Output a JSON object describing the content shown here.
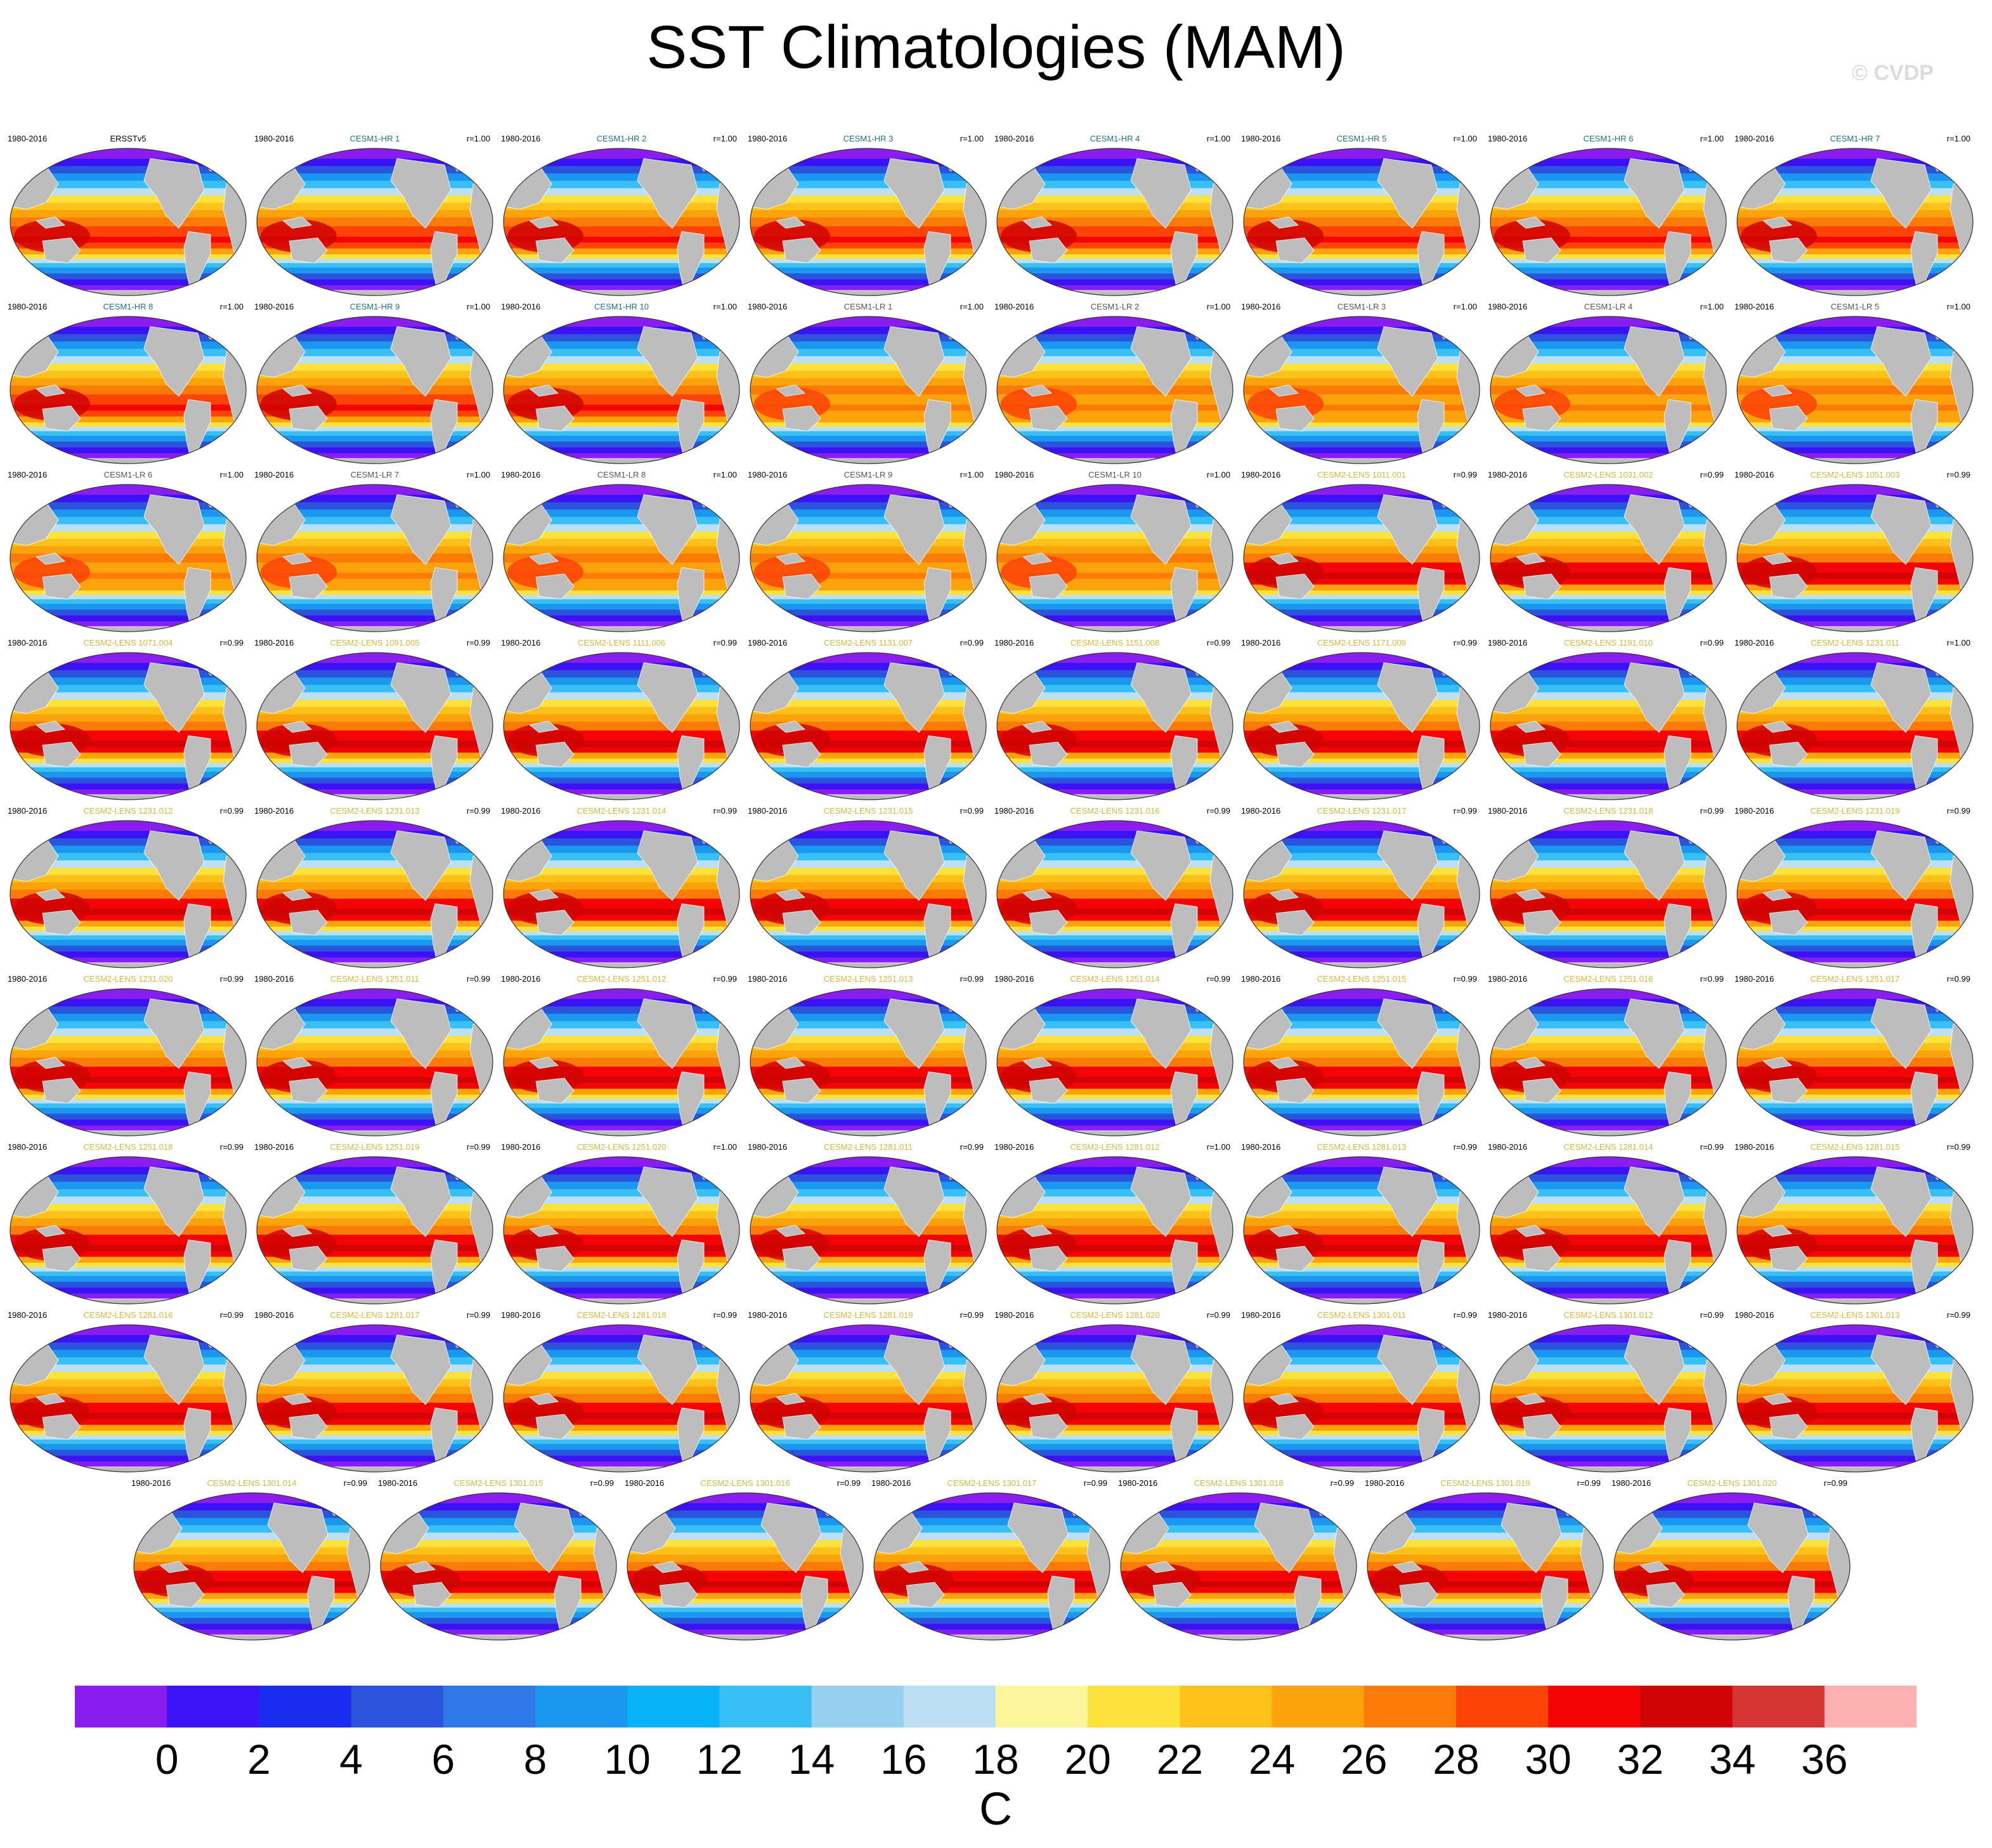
{
  "title": "SST Climatologies (MAM)",
  "watermark": "© CVDP",
  "colors": {
    "obs_label": "#000000",
    "hr_label": "#1f6f8b",
    "lr_label": "#555555",
    "lens_label": "#d4b840",
    "land": "#bdbdbd",
    "coast": "#ffffff"
  },
  "chart_data": {
    "type": "map_panels",
    "period": "1980-2016",
    "panels": [
      {
        "name": "ERSSTv5",
        "years": "1980-2016",
        "r": "",
        "group": "obs"
      },
      {
        "name": "CESM1-HR 1",
        "years": "1980-2016",
        "r": "r=1.00",
        "group": "hr"
      },
      {
        "name": "CESM1-HR 2",
        "years": "1980-2016",
        "r": "r=1.00",
        "group": "hr"
      },
      {
        "name": "CESM1-HR 3",
        "years": "1980-2016",
        "r": "r=1.00",
        "group": "hr"
      },
      {
        "name": "CESM1-HR 4",
        "years": "1980-2016",
        "r": "r=1.00",
        "group": "hr"
      },
      {
        "name": "CESM1-HR 5",
        "years": "1980-2016",
        "r": "r=1.00",
        "group": "hr"
      },
      {
        "name": "CESM1-HR 6",
        "years": "1980-2016",
        "r": "r=1.00",
        "group": "hr"
      },
      {
        "name": "CESM1-HR 7",
        "years": "1980-2016",
        "r": "r=1.00",
        "group": "hr"
      },
      {
        "name": "CESM1-HR 8",
        "years": "1980-2016",
        "r": "r=1.00",
        "group": "hr"
      },
      {
        "name": "CESM1-HR 9",
        "years": "1980-2016",
        "r": "r=1.00",
        "group": "hr"
      },
      {
        "name": "CESM1-HR 10",
        "years": "1980-2016",
        "r": "r=1.00",
        "group": "hr"
      },
      {
        "name": "CESM1-LR 1",
        "years": "1980-2016",
        "r": "r=1.00",
        "group": "lr"
      },
      {
        "name": "CESM1-LR 2",
        "years": "1980-2016",
        "r": "r=1.00",
        "group": "lr"
      },
      {
        "name": "CESM1-LR 3",
        "years": "1980-2016",
        "r": "r=1.00",
        "group": "lr"
      },
      {
        "name": "CESM1-LR 4",
        "years": "1980-2016",
        "r": "r=1.00",
        "group": "lr"
      },
      {
        "name": "CESM1-LR 5",
        "years": "1980-2016",
        "r": "r=1.00",
        "group": "lr"
      },
      {
        "name": "CESM1-LR 6",
        "years": "1980-2016",
        "r": "r=1.00",
        "group": "lr"
      },
      {
        "name": "CESM1-LR 7",
        "years": "1980-2016",
        "r": "r=1.00",
        "group": "lr"
      },
      {
        "name": "CESM1-LR 8",
        "years": "1980-2016",
        "r": "r=1.00",
        "group": "lr"
      },
      {
        "name": "CESM1-LR 9",
        "years": "1980-2016",
        "r": "r=1.00",
        "group": "lr"
      },
      {
        "name": "CESM1-LR 10",
        "years": "1980-2016",
        "r": "r=1.00",
        "group": "lr"
      },
      {
        "name": "CESM2-LENS 1011.001",
        "years": "1980-2016",
        "r": "r=0.99",
        "group": "lens"
      },
      {
        "name": "CESM2-LENS 1031.002",
        "years": "1980-2016",
        "r": "r=0.99",
        "group": "lens"
      },
      {
        "name": "CESM2-LENS 1051.003",
        "years": "1980-2016",
        "r": "r=0.99",
        "group": "lens"
      },
      {
        "name": "CESM2-LENS 1071.004",
        "years": "1980-2016",
        "r": "r=0.99",
        "group": "lens"
      },
      {
        "name": "CESM2-LENS 1091.005",
        "years": "1980-2016",
        "r": "r=0.99",
        "group": "lens"
      },
      {
        "name": "CESM2-LENS 1111.006",
        "years": "1980-2016",
        "r": "r=0.99",
        "group": "lens"
      },
      {
        "name": "CESM2-LENS 1131.007",
        "years": "1980-2016",
        "r": "r=0.99",
        "group": "lens"
      },
      {
        "name": "CESM2-LENS 1151.008",
        "years": "1980-2016",
        "r": "r=0.99",
        "group": "lens"
      },
      {
        "name": "CESM2-LENS 1171.009",
        "years": "1980-2016",
        "r": "r=0.99",
        "group": "lens"
      },
      {
        "name": "CESM2-LENS 1191.010",
        "years": "1980-2016",
        "r": "r=0.99",
        "group": "lens"
      },
      {
        "name": "CESM2-LENS 1231.011",
        "years": "1980-2016",
        "r": "r=1.00",
        "group": "lens"
      },
      {
        "name": "CESM2-LENS 1231.012",
        "years": "1980-2016",
        "r": "r=0.99",
        "group": "lens"
      },
      {
        "name": "CESM2-LENS 1231.013",
        "years": "1980-2016",
        "r": "r=0.99",
        "group": "lens"
      },
      {
        "name": "CESM2-LENS 1231.014",
        "years": "1980-2016",
        "r": "r=0.99",
        "group": "lens"
      },
      {
        "name": "CESM2-LENS 1231.015",
        "years": "1980-2016",
        "r": "r=0.99",
        "group": "lens"
      },
      {
        "name": "CESM2-LENS 1231.016",
        "years": "1980-2016",
        "r": "r=0.99",
        "group": "lens"
      },
      {
        "name": "CESM2-LENS 1231.017",
        "years": "1980-2016",
        "r": "r=0.99",
        "group": "lens"
      },
      {
        "name": "CESM2-LENS 1231.018",
        "years": "1980-2016",
        "r": "r=0.99",
        "group": "lens"
      },
      {
        "name": "CESM2-LENS 1231.019",
        "years": "1980-2016",
        "r": "r=0.99",
        "group": "lens"
      },
      {
        "name": "CESM2-LENS 1231.020",
        "years": "1980-2016",
        "r": "r=0.99",
        "group": "lens"
      },
      {
        "name": "CESM2-LENS 1251.011",
        "years": "1980-2016",
        "r": "r=0.99",
        "group": "lens"
      },
      {
        "name": "CESM2-LENS 1251.012",
        "years": "1980-2016",
        "r": "r=0.99",
        "group": "lens"
      },
      {
        "name": "CESM2-LENS 1251.013",
        "years": "1980-2016",
        "r": "r=0.99",
        "group": "lens"
      },
      {
        "name": "CESM2-LENS 1251.014",
        "years": "1980-2016",
        "r": "r=0.99",
        "group": "lens"
      },
      {
        "name": "CESM2-LENS 1251.015",
        "years": "1980-2016",
        "r": "r=0.99",
        "group": "lens"
      },
      {
        "name": "CESM2-LENS 1251.016",
        "years": "1980-2016",
        "r": "r=0.99",
        "group": "lens"
      },
      {
        "name": "CESM2-LENS 1251.017",
        "years": "1980-2016",
        "r": "r=0.99",
        "group": "lens"
      },
      {
        "name": "CESM2-LENS 1251.018",
        "years": "1980-2016",
        "r": "r=0.99",
        "group": "lens"
      },
      {
        "name": "CESM2-LENS 1251.019",
        "years": "1980-2016",
        "r": "r=0.99",
        "group": "lens"
      },
      {
        "name": "CESM2-LENS 1251.020",
        "years": "1980-2016",
        "r": "r=1.00",
        "group": "lens"
      },
      {
        "name": "CESM2-LENS 1281.011",
        "years": "1980-2016",
        "r": "r=0.99",
        "group": "lens"
      },
      {
        "name": "CESM2-LENS 1281.012",
        "years": "1980-2016",
        "r": "r=1.00",
        "group": "lens"
      },
      {
        "name": "CESM2-LENS 1281.013",
        "years": "1980-2016",
        "r": "r=0.99",
        "group": "lens"
      },
      {
        "name": "CESM2-LENS 1281.014",
        "years": "1980-2016",
        "r": "r=0.99",
        "group": "lens"
      },
      {
        "name": "CESM2-LENS 1281.015",
        "years": "1980-2016",
        "r": "r=0.99",
        "group": "lens"
      },
      {
        "name": "CESM2-LENS 1281.016",
        "years": "1980-2016",
        "r": "r=0.99",
        "group": "lens"
      },
      {
        "name": "CESM2-LENS 1281.017",
        "years": "1980-2016",
        "r": "r=0.99",
        "group": "lens"
      },
      {
        "name": "CESM2-LENS 1281.018",
        "years": "1980-2016",
        "r": "r=0.99",
        "group": "lens"
      },
      {
        "name": "CESM2-LENS 1281.019",
        "years": "1980-2016",
        "r": "r=0.99",
        "group": "lens"
      },
      {
        "name": "CESM2-LENS 1281.020",
        "years": "1980-2016",
        "r": "r=0.99",
        "group": "lens"
      },
      {
        "name": "CESM2-LENS 1301.011",
        "years": "1980-2016",
        "r": "r=0.99",
        "group": "lens"
      },
      {
        "name": "CESM2-LENS 1301.012",
        "years": "1980-2016",
        "r": "r=0.99",
        "group": "lens"
      },
      {
        "name": "CESM2-LENS 1301.013",
        "years": "1980-2016",
        "r": "r=0.99",
        "group": "lens"
      },
      {
        "name": "CESM2-LENS 1301.014",
        "years": "1980-2016",
        "r": "r=0.99",
        "group": "lens"
      },
      {
        "name": "CESM2-LENS 1301.015",
        "years": "1980-2016",
        "r": "r=0.99",
        "group": "lens"
      },
      {
        "name": "CESM2-LENS 1301.016",
        "years": "1980-2016",
        "r": "r=0.99",
        "group": "lens"
      },
      {
        "name": "CESM2-LENS 1301.017",
        "years": "1980-2016",
        "r": "r=0.99",
        "group": "lens"
      },
      {
        "name": "CESM2-LENS 1301.018",
        "years": "1980-2016",
        "r": "r=0.99",
        "group": "lens"
      },
      {
        "name": "CESM2-LENS 1301.019",
        "years": "1980-2016",
        "r": "r=0.99",
        "group": "lens"
      },
      {
        "name": "CESM2-LENS 1301.020",
        "years": "1980-2016",
        "r": "r=0.99",
        "group": "lens"
      }
    ],
    "colorbar": {
      "unit": "C",
      "tick_labels": [
        "0",
        "2",
        "4",
        "6",
        "8",
        "10",
        "12",
        "14",
        "16",
        "18",
        "20",
        "22",
        "24",
        "26",
        "28",
        "30",
        "32",
        "34",
        "36"
      ],
      "colors": [
        "#8a1ef0",
        "#3a12f5",
        "#1a2cf0",
        "#2a54dc",
        "#2f78e8",
        "#1a98f0",
        "#08b4f8",
        "#38c0f4",
        "#96d0ee",
        "#bcdff4",
        "#fcf69a",
        "#fce23a",
        "#fcc21a",
        "#fca20a",
        "#fc7a08",
        "#fc4408",
        "#f40404",
        "#d00404",
        "#d43434",
        "#fcb0b0"
      ]
    }
  }
}
